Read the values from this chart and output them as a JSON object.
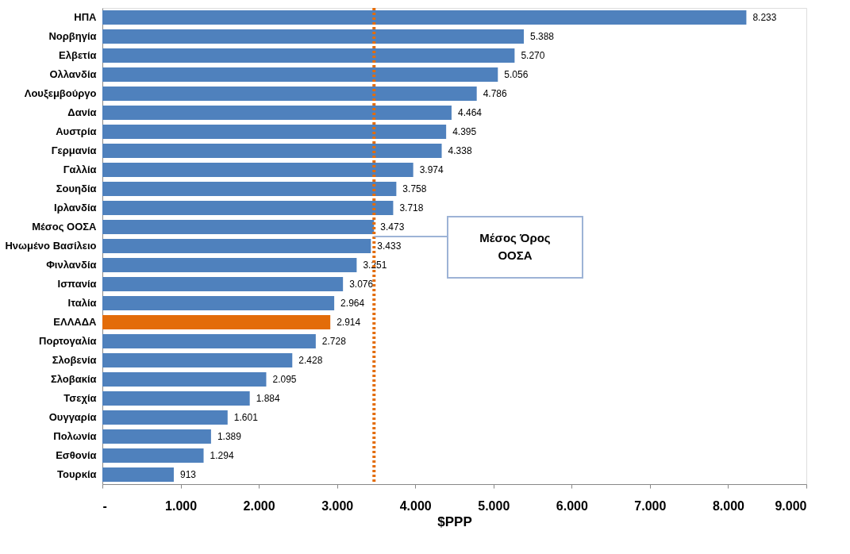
{
  "chart_data": {
    "type": "bar",
    "orientation": "horizontal",
    "xlabel": "$PPP",
    "categories": [
      "ΗΠΑ",
      "Νορβηγία",
      "Ελβετία",
      "Ολλανδία",
      "Λουξεμβούργο",
      "Δανία",
      "Αυστρία",
      "Γερμανία",
      "Γαλλία",
      "Σουηδία",
      "Ιρλανδία",
      "Μέσος ΟΟΣΑ",
      "Ηνωμένο Βασίλειο",
      "Φινλανδία",
      "Ισπανία",
      "Ιταλία",
      "ΕΛΛΑΔΑ",
      "Πορτογαλία",
      "Σλοβενία",
      "Σλοβακία",
      "Τσεχία",
      "Ουγγαρία",
      "Πολωνία",
      "Εσθονία",
      "Τουρκία"
    ],
    "values": [
      8233,
      5388,
      5270,
      5056,
      4786,
      4464,
      4395,
      4338,
      3974,
      3758,
      3718,
      3473,
      3433,
      3251,
      3076,
      2964,
      2914,
      2728,
      2428,
      2095,
      1884,
      1601,
      1389,
      1294,
      913
    ],
    "value_labels": [
      "8.233",
      "5.388",
      "5.270",
      "5.056",
      "4.786",
      "4.464",
      "4.395",
      "4.338",
      "3.974",
      "3.758",
      "3.718",
      "3.473",
      "3.433",
      "3.251",
      "3.076",
      "2.964",
      "2.914",
      "2.728",
      "2.428",
      "2.095",
      "1.884",
      "1.601",
      "1.389",
      "1.294",
      "913"
    ],
    "colors": [
      "#4f81bd",
      "#4f81bd",
      "#4f81bd",
      "#4f81bd",
      "#4f81bd",
      "#4f81bd",
      "#4f81bd",
      "#4f81bd",
      "#4f81bd",
      "#4f81bd",
      "#4f81bd",
      "#4f81bd",
      "#4f81bd",
      "#4f81bd",
      "#4f81bd",
      "#4f81bd",
      "#e36c09",
      "#4f81bd",
      "#4f81bd",
      "#4f81bd",
      "#4f81bd",
      "#4f81bd",
      "#4f81bd",
      "#4f81bd",
      "#4f81bd"
    ],
    "xlim": [
      0,
      9000
    ],
    "xticks": [
      {
        "value": 0,
        "label": "-"
      },
      {
        "value": 1000,
        "label": "1.000"
      },
      {
        "value": 2000,
        "label": "2.000"
      },
      {
        "value": 3000,
        "label": "3.000"
      },
      {
        "value": 4000,
        "label": "4.000"
      },
      {
        "value": 5000,
        "label": "5.000"
      },
      {
        "value": 6000,
        "label": "6.000"
      },
      {
        "value": 7000,
        "label": "7.000"
      },
      {
        "value": 8000,
        "label": "8.000"
      },
      {
        "value": 9000,
        "label": "9.000"
      }
    ],
    "ref_lines": [
      {
        "axis": "x",
        "value": 3473,
        "color": "#e36c09",
        "line_style": "dotted"
      }
    ],
    "annotations": [
      "Μέσος Όρος ΟΟΣΑ"
    ],
    "grid": false
  }
}
